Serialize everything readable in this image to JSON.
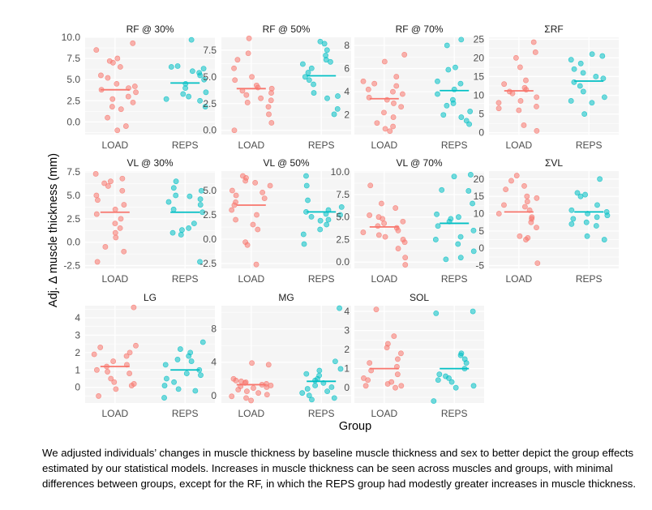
{
  "figure": {
    "ylabel": "Adj. Δ muscle thickness (mm)",
    "xlabel": "Group",
    "colors": {
      "LOAD": "#F8766D",
      "REPS": "#00BFC4",
      "panel_bg": "#F5F5F5",
      "grid": "#FFFFFF"
    }
  },
  "caption": "We adjusted individuals’ changes in muscle thickness by baseline muscle thickness and sex to better depict the group effects estimated by our statistical models. Increases in muscle thickness can be seen across muscles and groups, with minimal differences between groups, except for the RF, in which the REPS group had modestly greater increases in muscle thickness.",
  "chart_data": [
    {
      "type": "scatter",
      "title": "RF @ 30%",
      "categories": [
        "LOAD",
        "REPS"
      ],
      "ylim": [
        -1.5,
        10.0
      ],
      "yticks": [
        0.0,
        2.5,
        5.0,
        7.5,
        10.0
      ],
      "yticklabels": [
        "0.0",
        "2.5",
        "5.0",
        "7.5",
        "10.0"
      ],
      "series": [
        {
          "name": "LOAD",
          "mean": 3.8,
          "values": [
            9.3,
            8.5,
            7.5,
            7.2,
            7.0,
            6.5,
            5.5,
            5.2,
            4.5,
            4.2,
            4.0,
            3.8,
            3.5,
            3.0,
            2.7,
            2.3,
            1.8,
            1.5,
            0.5,
            -0.5,
            -1.0
          ]
        },
        {
          "name": "REPS",
          "mean": 4.6,
          "values": [
            9.7,
            6.6,
            6.5,
            6.3,
            6.0,
            5.8,
            5.5,
            5.0,
            4.5,
            4.0,
            3.5,
            3.3,
            3.0,
            2.7,
            2.5,
            1.8
          ]
        }
      ]
    },
    {
      "type": "scatter",
      "title": "RF @ 50%",
      "categories": [
        "LOAD",
        "REPS"
      ],
      "ylim": [
        -0.4,
        8.7
      ],
      "yticks": [
        0.0,
        2.5,
        5.0,
        7.5
      ],
      "yticklabels": [
        "0.0",
        "2.5",
        "5.0",
        "7.5"
      ],
      "series": [
        {
          "name": "LOAD",
          "mean": 3.9,
          "values": [
            8.6,
            7.2,
            6.6,
            5.8,
            5.0,
            4.7,
            4.2,
            4.0,
            3.9,
            3.7,
            3.5,
            3.3,
            3.0,
            2.8,
            2.6,
            2.2,
            1.5,
            0.7,
            0.0
          ]
        },
        {
          "name": "REPS",
          "mean": 5.1,
          "values": [
            8.3,
            8.1,
            7.5,
            7.0,
            6.6,
            6.4,
            6.2,
            5.8,
            5.4,
            5.0,
            4.7,
            4.3,
            3.5,
            3.2,
            3.0,
            2.0,
            1.5
          ]
        }
      ]
    },
    {
      "type": "scatter",
      "title": "RF @ 70%",
      "categories": [
        "LOAD",
        "REPS"
      ],
      "ylim": [
        0.3,
        8.7
      ],
      "yticks": [
        2,
        4,
        6,
        8
      ],
      "yticklabels": [
        "2",
        "4",
        "6",
        "8"
      ],
      "series": [
        {
          "name": "LOAD",
          "mean": 3.4,
          "values": [
            7.2,
            6.6,
            5.3,
            4.9,
            4.7,
            4.5,
            4.2,
            4.0,
            3.8,
            3.5,
            3.3,
            3.0,
            2.7,
            2.2,
            1.8,
            1.3,
            1.0,
            0.8,
            0.6
          ]
        },
        {
          "name": "REPS",
          "mean": 4.1,
          "values": [
            8.5,
            8.0,
            6.1,
            5.9,
            4.9,
            4.7,
            4.2,
            3.8,
            3.3,
            3.0,
            2.8,
            2.3,
            2.0,
            1.8,
            1.5,
            1.2
          ]
        }
      ]
    },
    {
      "type": "scatter",
      "title": "ΣRF",
      "categories": [
        "LOAD",
        "REPS"
      ],
      "ylim": [
        -0.5,
        25.5
      ],
      "yticks": [
        0,
        5,
        10,
        15,
        20,
        25
      ],
      "yticklabels": [
        "0",
        "5",
        "10",
        "15",
        "20",
        "25"
      ],
      "series": [
        {
          "name": "LOAD",
          "mean": 11.2,
          "values": [
            24.2,
            21.5,
            20.0,
            17.5,
            14.0,
            13.0,
            12.0,
            11.5,
            11.0,
            10.5,
            9.5,
            8.5,
            8.0,
            7.0,
            6.5,
            6.0,
            2.0,
            0.5
          ]
        },
        {
          "name": "REPS",
          "mean": 13.8,
          "values": [
            21.0,
            20.5,
            19.5,
            18.5,
            17.0,
            16.0,
            15.0,
            14.5,
            13.5,
            12.5,
            11.0,
            9.5,
            8.5,
            8.0,
            5.0
          ]
        }
      ]
    },
    {
      "type": "scatter",
      "title": "VL @ 30%",
      "categories": [
        "LOAD",
        "REPS"
      ],
      "ylim": [
        -2.8,
        7.6
      ],
      "yticks": [
        -2.5,
        0.0,
        2.5,
        5.0,
        7.5
      ],
      "yticklabels": [
        "-2.5",
        "0.0",
        "2.5",
        "5.0",
        "7.5"
      ],
      "series": [
        {
          "name": "LOAD",
          "mean": 3.2,
          "values": [
            7.3,
            6.8,
            6.5,
            6.3,
            6.0,
            5.5,
            5.0,
            4.5,
            4.0,
            3.5,
            3.0,
            2.5,
            2.0,
            1.5,
            1.0,
            0.5,
            -0.5,
            -1.0,
            -2.1
          ]
        },
        {
          "name": "REPS",
          "mean": 3.2,
          "values": [
            6.5,
            5.8,
            5.5,
            5.0,
            4.9,
            4.6,
            4.3,
            4.0,
            3.5,
            3.2,
            2.0,
            1.5,
            1.3,
            1.0,
            0.8,
            -2.1
          ]
        }
      ]
    },
    {
      "type": "scatter",
      "title": "VL @ 50%",
      "categories": [
        "LOAD",
        "REPS"
      ],
      "ylim": [
        -3.0,
        7.0
      ],
      "yticks": [
        -2.5,
        0.0,
        2.5,
        5.0
      ],
      "yticklabels": [
        "-2.5",
        "0.0",
        "2.5",
        "5.0"
      ],
      "series": [
        {
          "name": "LOAD",
          "mean": 3.5,
          "values": [
            6.5,
            6.3,
            6.0,
            5.8,
            5.5,
            5.0,
            4.8,
            4.5,
            4.2,
            3.8,
            3.5,
            3.0,
            2.5,
            2.0,
            1.5,
            1.0,
            -0.3,
            -0.6,
            -2.6
          ]
        },
        {
          "name": "REPS",
          "mean": 2.8,
          "values": [
            6.5,
            5.5,
            4.0,
            3.3,
            3.0,
            2.8,
            2.6,
            2.5,
            2.3,
            2.0,
            1.9,
            1.5,
            1.0,
            0.5,
            -0.5
          ]
        }
      ]
    },
    {
      "type": "scatter",
      "title": "VL @ 70%",
      "categories": [
        "LOAD",
        "REPS"
      ],
      "ylim": [
        -0.7,
        10.1
      ],
      "yticks": [
        0.0,
        2.5,
        5.0,
        7.5,
        10.0
      ],
      "yticklabels": [
        "0.0",
        "2.5",
        "5.0",
        "7.5",
        "10.0"
      ],
      "series": [
        {
          "name": "LOAD",
          "mean": 3.9,
          "values": [
            8.5,
            6.5,
            6.0,
            5.2,
            5.0,
            4.8,
            4.5,
            4.3,
            4.0,
            3.8,
            3.5,
            3.3,
            3.0,
            2.8,
            2.5,
            2.2,
            1.5,
            0.5,
            -0.3
          ]
        },
        {
          "name": "REPS",
          "mean": 4.3,
          "values": [
            9.7,
            9.5,
            8.0,
            7.9,
            6.5,
            5.3,
            5.0,
            4.8,
            4.5,
            4.0,
            3.5,
            2.8,
            2.5,
            2.0,
            1.2,
            0.5,
            0.3
          ]
        }
      ]
    },
    {
      "type": "scatter",
      "title": "ΣVL",
      "categories": [
        "LOAD",
        "REPS"
      ],
      "ylim": [
        -5.8,
        22.3
      ],
      "yticks": [
        -5,
        0,
        5,
        10,
        15,
        20
      ],
      "yticklabels": [
        "-5",
        "0",
        "5",
        "10",
        "15",
        "20"
      ],
      "series": [
        {
          "name": "LOAD",
          "mean": 10.5,
          "values": [
            21.0,
            19.5,
            18.0,
            17.0,
            15.0,
            14.5,
            13.5,
            12.5,
            12.0,
            11.0,
            10.0,
            9.0,
            8.5,
            7.5,
            6.0,
            3.5,
            3.0,
            2.5,
            -4.3
          ]
        },
        {
          "name": "REPS",
          "mean": 10.5,
          "values": [
            20.0,
            16.0,
            15.5,
            15.0,
            12.5,
            11.0,
            10.5,
            10.0,
            9.5,
            9.0,
            8.5,
            7.5,
            7.0,
            6.5,
            3.5,
            2.5
          ]
        }
      ]
    },
    {
      "type": "scatter",
      "title": "LG",
      "categories": [
        "LOAD",
        "REPS"
      ],
      "ylim": [
        -0.9,
        4.7
      ],
      "yticks": [
        0,
        1,
        2,
        3,
        4
      ],
      "yticklabels": [
        "0",
        "1",
        "2",
        "3",
        "4"
      ],
      "series": [
        {
          "name": "LOAD",
          "mean": 1.2,
          "values": [
            4.6,
            2.4,
            2.3,
            2.0,
            1.9,
            1.8,
            1.5,
            1.3,
            1.2,
            1.0,
            0.9,
            0.8,
            0.5,
            0.3,
            0.2,
            0.1,
            -0.1,
            -0.5
          ]
        },
        {
          "name": "REPS",
          "mean": 1.0,
          "values": [
            2.6,
            2.2,
            2.0,
            1.8,
            1.6,
            1.5,
            1.3,
            1.0,
            0.8,
            0.7,
            0.5,
            0.3,
            0.1,
            -0.1,
            -0.2,
            -0.6
          ]
        }
      ]
    },
    {
      "type": "scatter",
      "title": "MG",
      "categories": [
        "LOAD",
        "REPS"
      ],
      "ylim": [
        -0.9,
        10.8
      ],
      "yticks": [
        0,
        4,
        8
      ],
      "yticklabels": [
        "0",
        "4",
        "8"
      ],
      "series": [
        {
          "name": "LOAD",
          "mean": 1.3,
          "values": [
            3.9,
            3.7,
            2.0,
            1.8,
            1.7,
            1.6,
            1.5,
            1.4,
            1.3,
            1.2,
            1.1,
            1.0,
            0.9,
            0.7,
            0.5,
            0.3,
            0.1,
            -0.1,
            -0.3,
            -0.6
          ]
        },
        {
          "name": "REPS",
          "mean": 1.7,
          "values": [
            10.5,
            4.1,
            3.2,
            3.0,
            2.6,
            2.4,
            2.0,
            1.8,
            1.5,
            1.2,
            1.0,
            0.8,
            0.5,
            0.3,
            0.0,
            -0.3,
            -0.5
          ]
        }
      ]
    },
    {
      "type": "scatter",
      "title": "SOL",
      "categories": [
        "LOAD",
        "REPS"
      ],
      "ylim": [
        -0.8,
        4.3
      ],
      "yticks": [
        0,
        1,
        2,
        3,
        4
      ],
      "yticklabels": [
        "0",
        "1",
        "2",
        "3",
        "4"
      ],
      "series": [
        {
          "name": "LOAD",
          "mean": 1.0,
          "values": [
            4.1,
            2.7,
            2.3,
            2.1,
            1.8,
            1.5,
            1.3,
            1.1,
            0.9,
            0.7,
            0.5,
            0.4,
            0.3,
            0.2,
            0.1,
            0.1,
            0.0
          ]
        },
        {
          "name": "REPS",
          "mean": 1.0,
          "values": [
            4.0,
            3.9,
            1.8,
            1.7,
            1.5,
            1.3,
            1.0,
            0.7,
            0.6,
            0.5,
            0.4,
            0.3,
            0.1,
            0.0,
            -0.7
          ]
        }
      ]
    }
  ]
}
